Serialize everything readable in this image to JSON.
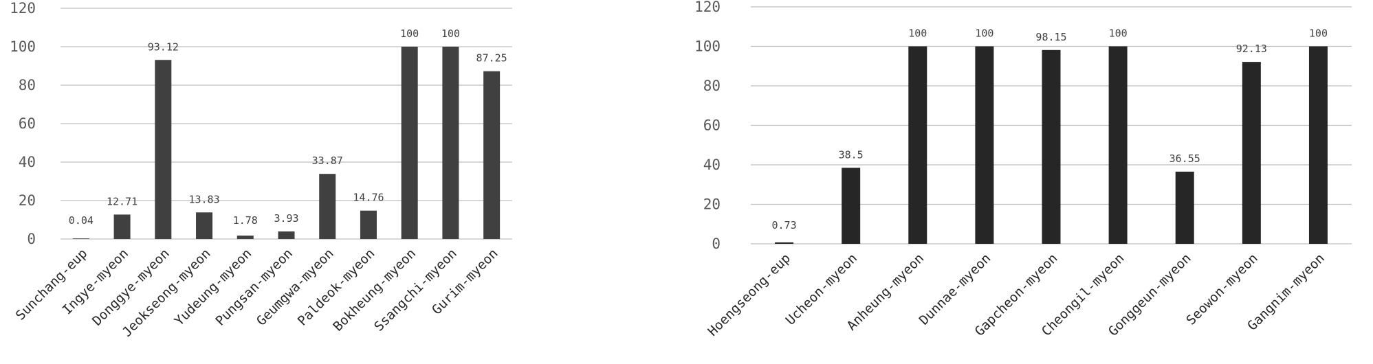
{
  "chart_data": [
    {
      "type": "bar",
      "categories": [
        "Sunchang-eup",
        "Ingye-myeon",
        "Donggye-myeon",
        "Jeokseong-myeon",
        "Yudeung-myeon",
        "Pungsan-myeon",
        "Geumgwa-myeon",
        "Paldeok-myeon",
        "Bokheung-myeon",
        "Ssangchi-myeon",
        "Gurim-myeon"
      ],
      "values": [
        0.04,
        12.71,
        93.12,
        13.83,
        1.78,
        3.93,
        33.87,
        14.76,
        100,
        100,
        87.25
      ],
      "value_labels": [
        "0.04",
        "12.71",
        "93.12",
        "13.83",
        "1.78",
        "3.93",
        "33.87",
        "14.76",
        "100",
        "100",
        "87.25"
      ],
      "yticks": [
        "0",
        "20",
        "40",
        "60",
        "80",
        "100",
        "120"
      ],
      "ylim": [
        0,
        120
      ],
      "grid": true,
      "bar_color": "#404040",
      "title": "",
      "xlabel": "",
      "ylabel": ""
    },
    {
      "type": "bar",
      "categories": [
        "Hoengseong-eup",
        "Ucheon-myeon",
        "Anheung-myeon",
        "Dunnae-myeon",
        "Gapcheon-myeon",
        "Cheongil-myeon",
        "Gonggeun-myeon",
        "Seowon-myeon",
        "Gangnim-myeon"
      ],
      "values": [
        0.73,
        38.5,
        100,
        100,
        98.15,
        100,
        36.55,
        92.13,
        100
      ],
      "value_labels": [
        "0.73",
        "38.5",
        "100",
        "100",
        "98.15",
        "100",
        "36.55",
        "92.13",
        "100"
      ],
      "yticks": [
        "0",
        "20",
        "40",
        "60",
        "80",
        "100",
        "120"
      ],
      "ylim": [
        0,
        120
      ],
      "grid": true,
      "bar_color": "#262626",
      "title": "",
      "xlabel": "",
      "ylabel": ""
    }
  ],
  "colors": {
    "gridline": "#bfbfbf",
    "axis_text": "#595959"
  }
}
